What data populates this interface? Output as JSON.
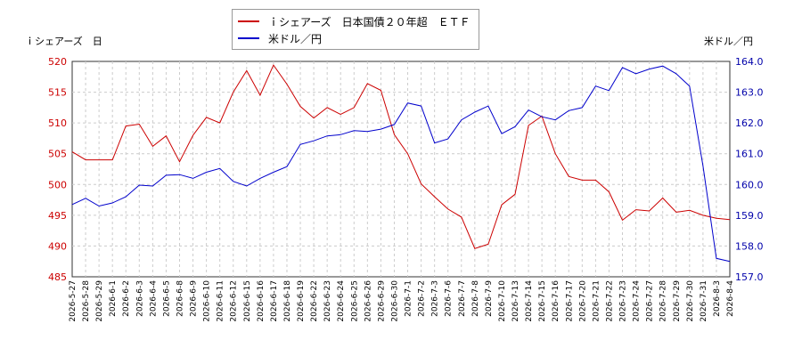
{
  "chart_data": {
    "type": "line",
    "legend_position": "top-center",
    "grid": true,
    "left_axis_label": "ｉシェアーズ　日",
    "right_axis_label": "米ドル／円",
    "left_ylim": [
      485,
      520
    ],
    "right_ylim": [
      157.0,
      164.0
    ],
    "left_ticks": [
      "485",
      "490",
      "495",
      "500",
      "505",
      "510",
      "515",
      "520"
    ],
    "right_ticks": [
      "157.0",
      "158.0",
      "159.0",
      "160.0",
      "161.0",
      "162.0",
      "163.0",
      "164.0"
    ],
    "x": [
      "2026-5-27",
      "2026-5-28",
      "2026-5-29",
      "2026-6-1",
      "2026-6-2",
      "2026-6-3",
      "2026-6-4",
      "2026-6-5",
      "2026-6-8",
      "2026-6-9",
      "2026-6-10",
      "2026-6-11",
      "2026-6-12",
      "2026-6-15",
      "2026-6-16",
      "2026-6-17",
      "2026-6-18",
      "2026-6-19",
      "2026-6-22",
      "2026-6-23",
      "2026-6-24",
      "2026-6-25",
      "2026-6-26",
      "2026-6-29",
      "2026-6-30",
      "2026-7-1",
      "2026-7-2",
      "2026-7-3",
      "2026-7-6",
      "2026-7-7",
      "2026-7-8",
      "2026-7-9",
      "2026-7-10",
      "2026-7-13",
      "2026-7-14",
      "2026-7-15",
      "2026-7-16",
      "2026-7-17",
      "2026-7-20",
      "2026-7-21",
      "2026-7-22",
      "2026-7-23",
      "2026-7-24",
      "2026-7-27",
      "2026-7-28",
      "2026-7-29",
      "2026-7-30",
      "2026-7-31",
      "2026-8-3",
      "2026-8-4"
    ],
    "series": [
      {
        "name": "ｉシェアーズ　日本国債２０年超　ＥＴＦ",
        "axis": "left",
        "color": "#cc0000",
        "values": [
          505.3,
          504.0,
          504.0,
          504.0,
          509.5,
          509.8,
          506.2,
          507.9,
          503.7,
          508.0,
          510.9,
          510.0,
          515.0,
          518.5,
          514.5,
          519.4,
          516.3,
          512.7,
          510.8,
          512.5,
          511.4,
          512.5,
          516.4,
          515.3,
          508.1,
          505.0,
          500.1,
          498.0,
          496.0,
          494.7,
          489.6,
          490.3,
          496.7,
          498.4,
          509.6,
          511.1,
          505.0,
          501.3,
          500.7,
          500.7,
          498.8,
          494.2,
          495.9,
          495.7,
          497.8,
          495.5,
          495.8,
          495.0,
          494.5,
          494.3
        ]
      },
      {
        "name": "米ドル／円",
        "axis": "right",
        "color": "#0000cc",
        "values": [
          159.35,
          159.55,
          159.3,
          159.4,
          159.6,
          159.98,
          159.95,
          160.3,
          160.32,
          160.2,
          160.4,
          160.52,
          160.1,
          159.95,
          160.2,
          160.4,
          160.58,
          161.3,
          161.42,
          161.58,
          161.62,
          161.75,
          161.72,
          161.8,
          161.95,
          162.65,
          162.55,
          161.35,
          161.48,
          162.1,
          162.35,
          162.55,
          161.65,
          161.88,
          162.42,
          162.2,
          162.1,
          162.4,
          162.5,
          163.2,
          163.05,
          163.8,
          163.6,
          163.75,
          163.85,
          163.6,
          163.2,
          160.6,
          157.6,
          157.5
        ]
      }
    ]
  }
}
